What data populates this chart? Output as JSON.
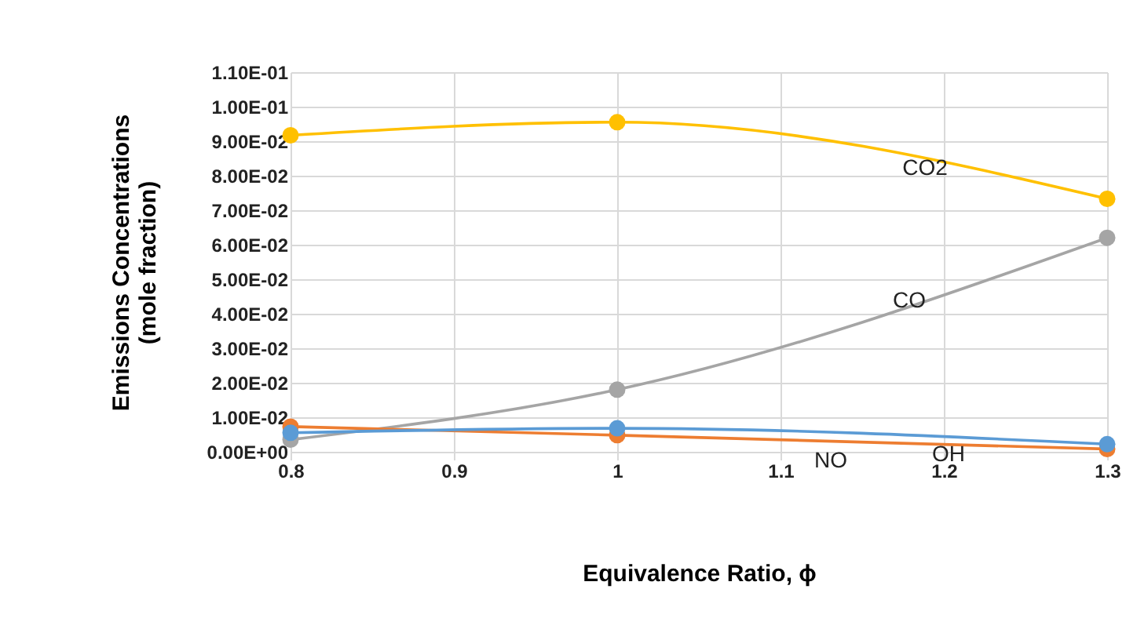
{
  "chart_data": {
    "type": "line",
    "xlabel": "Equivalence Ratio, ϕ",
    "ylabel": "Emissions Concentrations\n(mole fraction)",
    "x": [
      0.8,
      1,
      1.3
    ],
    "xlim": [
      0.8,
      1.3
    ],
    "xticks": [
      0.8,
      0.9,
      1,
      1.1,
      1.2,
      1.3
    ],
    "ylim": [
      0,
      0.11
    ],
    "yticks": [
      {
        "value": 0,
        "label": "0.00E+00"
      },
      {
        "value": 0.01,
        "label": "1.00E-02"
      },
      {
        "value": 0.02,
        "label": "2.00E-02"
      },
      {
        "value": 0.03,
        "label": "3.00E-02"
      },
      {
        "value": 0.04,
        "label": "4.00E-02"
      },
      {
        "value": 0.05,
        "label": "5.00E-02"
      },
      {
        "value": 0.06,
        "label": "6.00E-02"
      },
      {
        "value": 0.07,
        "label": "7.00E-02"
      },
      {
        "value": 0.08,
        "label": "8.00E-02"
      },
      {
        "value": 0.09,
        "label": "9.00E-02"
      },
      {
        "value": 0.1,
        "label": "1.00E-01"
      },
      {
        "value": 0.11,
        "label": "1.10E-01"
      }
    ],
    "series": [
      {
        "name": "CO2",
        "color": "#ffc000",
        "values": [
          0.0917,
          0.0955,
          0.0733
        ]
      },
      {
        "name": "CO",
        "color": "#a5a5a5",
        "values": [
          0.0035,
          0.018,
          0.062
        ]
      },
      {
        "name": "NO",
        "color": "#ed7d31",
        "values": [
          0.0073,
          0.0048,
          0.0008
        ]
      },
      {
        "name": "OH",
        "color": "#5b9bd5",
        "values": [
          0.0055,
          0.0068,
          0.0022
        ]
      }
    ],
    "grid": true,
    "legend": false,
    "marker": "circle",
    "line_style": "solid"
  }
}
